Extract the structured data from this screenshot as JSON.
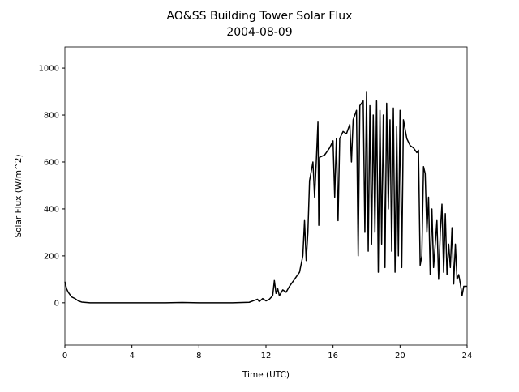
{
  "chart_data": {
    "type": "line",
    "title": "AO&SS Building Tower Solar Flux",
    "subtitle": "2004-08-09",
    "x_label": "Time (UTC)",
    "y_label": "Solar Flux (W/m^2)",
    "xlim": [
      0,
      24
    ],
    "xticks": [
      0,
      4,
      8,
      12,
      16,
      20,
      24
    ],
    "ylim": [
      -180,
      1090
    ],
    "yticks": [
      0,
      200,
      400,
      600,
      800,
      1000
    ],
    "grid": false,
    "series": [
      {
        "color": "#000000",
        "x": [
          0,
          0.1,
          0.2,
          0.4,
          0.6,
          0.8,
          1.0,
          1.5,
          2,
          4,
          6,
          7,
          8,
          10,
          11,
          11.3,
          11.5,
          11.6,
          11.8,
          12.0,
          12.2,
          12.4,
          12.5,
          12.6,
          12.7,
          12.8,
          13.0,
          13.2,
          13.4,
          13.6,
          13.8,
          14.0,
          14.2,
          14.3,
          14.4,
          14.5,
          14.6,
          14.7,
          14.8,
          14.9,
          15.0,
          15.1,
          15.15,
          15.2,
          15.5,
          15.8,
          16.0,
          16.1,
          16.2,
          16.3,
          16.4,
          16.6,
          16.8,
          17.0,
          17.1,
          17.2,
          17.4,
          17.5,
          17.6,
          17.8,
          17.9,
          18.0,
          18.1,
          18.2,
          18.3,
          18.4,
          18.5,
          18.6,
          18.7,
          18.8,
          18.9,
          19.0,
          19.1,
          19.2,
          19.3,
          19.4,
          19.5,
          19.6,
          19.7,
          19.8,
          19.9,
          20.0,
          20.1,
          20.2,
          20.4,
          20.6,
          20.8,
          21.0,
          21.1,
          21.2,
          21.3,
          21.4,
          21.5,
          21.6,
          21.7,
          21.8,
          21.9,
          22.0,
          22.1,
          22.2,
          22.3,
          22.4,
          22.5,
          22.6,
          22.7,
          22.8,
          22.9,
          23.0,
          23.1,
          23.2,
          23.3,
          23.4,
          23.5,
          23.6,
          23.7,
          23.8,
          24.0
        ],
        "values": [
          90,
          60,
          45,
          25,
          18,
          8,
          3,
          0,
          0,
          0,
          0,
          1,
          0,
          0,
          2,
          10,
          15,
          5,
          18,
          8,
          15,
          30,
          95,
          40,
          60,
          30,
          55,
          45,
          70,
          90,
          110,
          130,
          200,
          350,
          180,
          300,
          520,
          560,
          600,
          450,
          600,
          770,
          330,
          620,
          630,
          660,
          690,
          450,
          700,
          350,
          700,
          730,
          720,
          760,
          600,
          780,
          820,
          200,
          840,
          860,
          300,
          900,
          220,
          840,
          250,
          800,
          300,
          860,
          130,
          820,
          250,
          800,
          150,
          850,
          400,
          780,
          220,
          830,
          130,
          750,
          200,
          820,
          150,
          780,
          700,
          670,
          660,
          640,
          650,
          160,
          200,
          580,
          550,
          300,
          450,
          120,
          400,
          150,
          250,
          350,
          100,
          300,
          420,
          130,
          380,
          120,
          250,
          150,
          320,
          80,
          250,
          100,
          120,
          80,
          30,
          70,
          70
        ]
      }
    ]
  }
}
